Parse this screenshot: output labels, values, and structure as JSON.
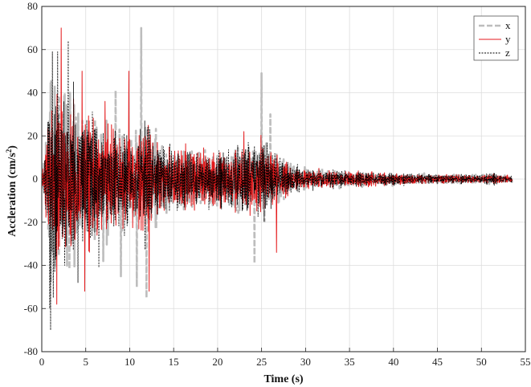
{
  "chart_data": {
    "type": "line",
    "title": "",
    "xlabel": "Time (s)",
    "ylabel_main": "Accleration (cm/s",
    "ylabel_sup": "2",
    "ylabel_tail": ")",
    "xlim": [
      0,
      55
    ],
    "ylim": [
      -80,
      80
    ],
    "xticks": [
      0,
      5,
      10,
      15,
      20,
      25,
      30,
      35,
      40,
      45,
      50,
      55
    ],
    "yticks": [
      -80,
      -60,
      -40,
      -20,
      0,
      20,
      40,
      60,
      80
    ],
    "grid": true,
    "legend_position": "top-right",
    "duration": 53.5,
    "envelope": {
      "t": [
        0,
        0.5,
        1,
        2,
        3,
        5,
        8,
        11,
        11.5,
        13,
        15,
        20,
        24,
        25,
        26.5,
        28,
        30,
        35,
        40,
        45,
        50,
        51,
        53.5
      ],
      "amp": [
        3,
        30,
        55,
        55,
        52,
        42,
        32,
        32,
        40,
        26,
        20,
        18,
        22,
        26,
        18,
        10,
        7,
        5,
        4,
        3,
        3,
        3.5,
        2
      ]
    },
    "series": [
      {
        "name": "x",
        "color": "#bdbdbd",
        "width": 2.6,
        "dash": "7,3",
        "peaks": [
          [
            11.3,
            70
          ],
          [
            11.9,
            -55
          ],
          [
            25.0,
            49
          ],
          [
            24.2,
            -39
          ],
          [
            3.2,
            40
          ],
          [
            8.4,
            41
          ],
          [
            9.0,
            -45
          ],
          [
            10.8,
            -50
          ],
          [
            7.0,
            -38
          ],
          [
            26.0,
            30
          ]
        ]
      },
      {
        "name": "y",
        "color": "#e41a1c",
        "width": 1,
        "dash": "",
        "peaks": [
          [
            2.2,
            70
          ],
          [
            4.6,
            50
          ],
          [
            1.7,
            -58
          ],
          [
            4.9,
            -52
          ],
          [
            9.9,
            50
          ],
          [
            12.2,
            -52
          ],
          [
            26.7,
            -34
          ],
          [
            23.0,
            22
          ],
          [
            0.9,
            22
          ],
          [
            7.2,
            36
          ]
        ]
      },
      {
        "name": "z",
        "color": "#000000",
        "width": 0.8,
        "dash": "2,1.5",
        "peaks": [
          [
            1.0,
            -70
          ],
          [
            1.2,
            59
          ],
          [
            1.8,
            59
          ],
          [
            0.9,
            -60
          ],
          [
            3.0,
            64
          ],
          [
            2.6,
            -40
          ],
          [
            4.1,
            -48
          ],
          [
            3.6,
            45
          ],
          [
            1.3,
            -55
          ],
          [
            6.5,
            -41
          ]
        ]
      }
    ]
  }
}
